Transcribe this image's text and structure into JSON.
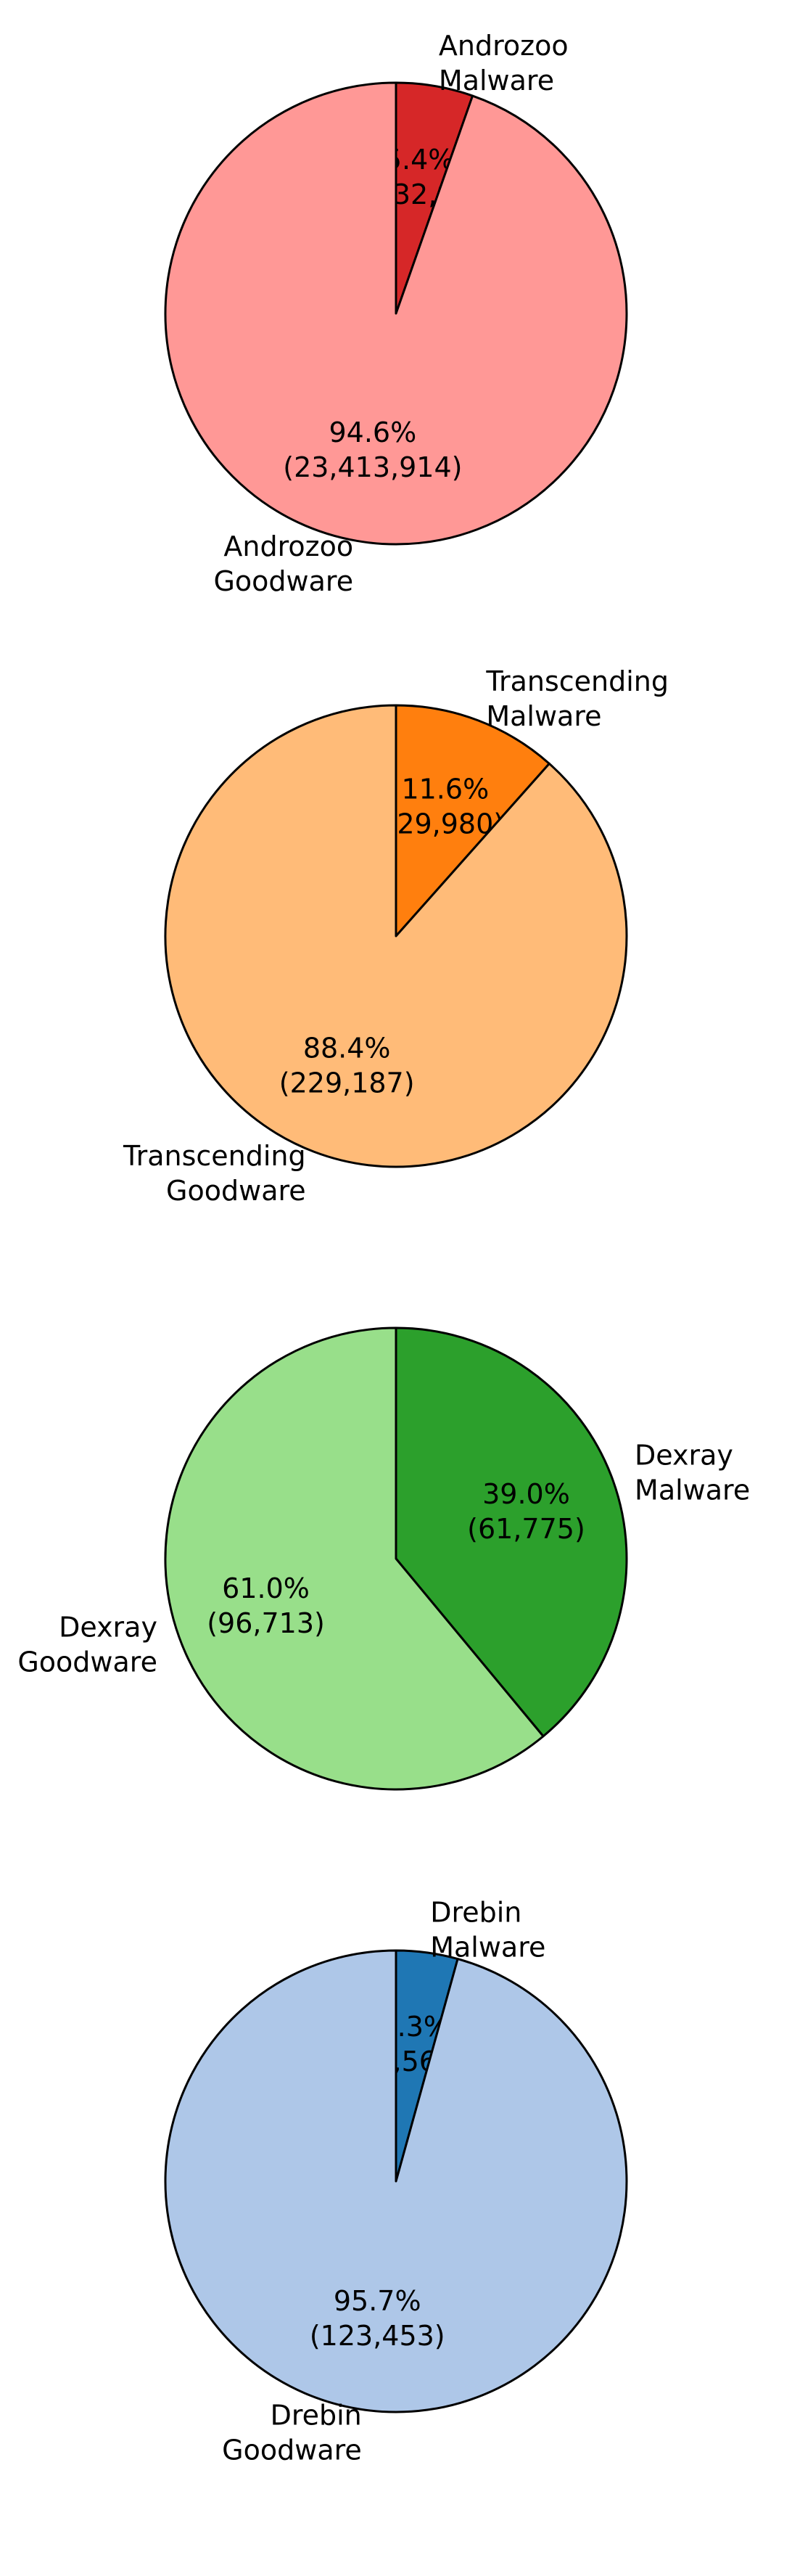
{
  "chart_data": [
    {
      "type": "pie",
      "categories": [
        "Androzoo Malware",
        "Androzoo Goodware"
      ],
      "values": [
        1332929,
        23413914
      ],
      "percent_labels": [
        "5.4%",
        "94.6%"
      ],
      "count_labels": [
        "(1,332,929)",
        "(23,413,914)"
      ],
      "label_lines": [
        [
          "Androzoo",
          "Malware"
        ],
        [
          "Androzoo",
          "Goodware"
        ]
      ],
      "colors": [
        "#d62728",
        "#ff9896"
      ]
    },
    {
      "type": "pie",
      "categories": [
        "Transcending Malware",
        "Transcending Goodware"
      ],
      "values": [
        29980,
        229187
      ],
      "percent_labels": [
        "11.6%",
        "88.4%"
      ],
      "count_labels": [
        "(29,980)",
        "(229,187)"
      ],
      "label_lines": [
        [
          "Transcending",
          "Malware"
        ],
        [
          "Transcending",
          "Goodware"
        ]
      ],
      "colors": [
        "#ff7f0e",
        "#ffbb78"
      ]
    },
    {
      "type": "pie",
      "categories": [
        "Dexray Malware",
        "Dexray Goodware"
      ],
      "values": [
        61775,
        96713
      ],
      "percent_labels": [
        "39.0%",
        "61.0%"
      ],
      "count_labels": [
        "(61,775)",
        "(96,713)"
      ],
      "label_lines": [
        [
          "Dexray",
          "Malware"
        ],
        [
          "Dexray",
          "Goodware"
        ]
      ],
      "colors": [
        "#2ca02c",
        "#98df8a"
      ]
    },
    {
      "type": "pie",
      "categories": [
        "Drebin Malware",
        "Drebin Goodware"
      ],
      "values": [
        5560,
        123453
      ],
      "percent_labels": [
        "4.3%",
        "95.7%"
      ],
      "count_labels": [
        "(5,560)",
        "(123,453)"
      ],
      "label_lines": [
        [
          "Drebin",
          "Malware"
        ],
        [
          "Drebin",
          "Goodware"
        ]
      ],
      "colors": [
        "#1f77b4",
        "#aec7e8"
      ]
    }
  ]
}
